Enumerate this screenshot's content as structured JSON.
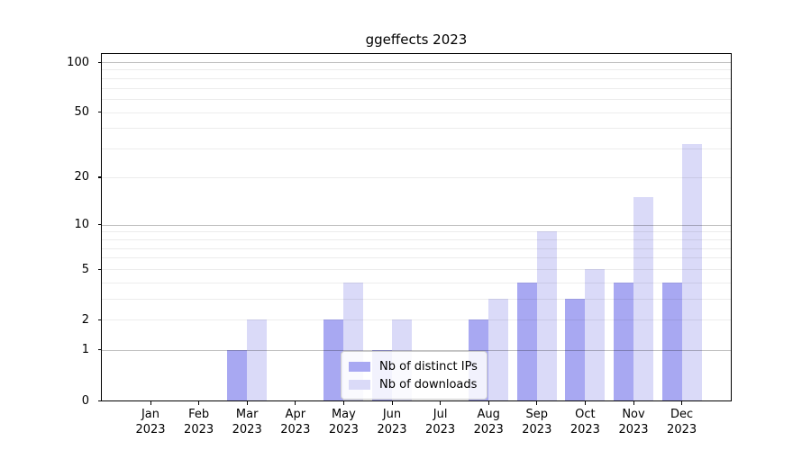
{
  "chart_data": {
    "type": "bar",
    "title": "ggeffects 2023",
    "categories": [
      "Jan 2023",
      "Feb 2023",
      "Mar 2023",
      "Apr 2023",
      "May 2023",
      "Jun 2023",
      "Jul 2023",
      "Aug 2023",
      "Sep 2023",
      "Oct 2023",
      "Nov 2023",
      "Dec 2023"
    ],
    "months": [
      "Jan",
      "Feb",
      "Mar",
      "Apr",
      "May",
      "Jun",
      "Jul",
      "Aug",
      "Sep",
      "Oct",
      "Nov",
      "Dec"
    ],
    "year": "2023",
    "series": [
      {
        "name": "Nb of distinct IPs",
        "color": "#a8a8f2",
        "values": [
          0,
          0,
          1,
          0,
          2,
          1,
          0,
          2,
          4,
          3,
          4,
          4
        ]
      },
      {
        "name": "Nb of downloads",
        "color": "#dadaf8",
        "values": [
          0,
          0,
          2,
          0,
          4,
          2,
          0,
          3,
          9,
          5,
          15,
          32
        ]
      }
    ],
    "y_axis": {
      "scale": "log1p",
      "tick_labels": [
        0,
        1,
        2,
        5,
        10,
        20,
        50,
        100
      ],
      "major_gridlines": [
        1,
        10,
        100
      ],
      "minor_gridlines": [
        2,
        3,
        4,
        5,
        6,
        7,
        8,
        9,
        20,
        30,
        40,
        50,
        60,
        70,
        80,
        90
      ],
      "ylim": [
        0,
        100
      ]
    },
    "legend": {
      "position": "inside lower center-right"
    }
  },
  "colors": {
    "background": "#ffffff",
    "spine": "#000000",
    "text": "#000000",
    "legend_border": "#cccccc"
  }
}
